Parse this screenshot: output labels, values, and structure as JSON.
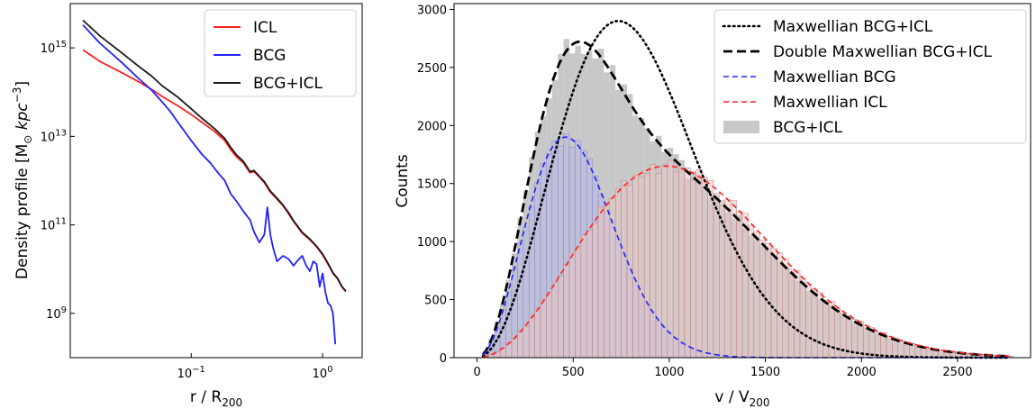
{
  "chart_data": [
    {
      "type": "line",
      "xlabel": "r / R",
      "xlabel_sub": "200",
      "ylabel": "Density profile [M",
      "ylabel_sub": "⊙",
      "ylabel_unit": " kpc",
      "ylabel_sup": "−3",
      "ylabel_close": "]",
      "xscale": "log",
      "yscale": "log",
      "xlim": [
        0.012,
        2.0
      ],
      "ylim": [
        100000000.0,
        1e+16
      ],
      "xticks": [
        {
          "value": 0.1,
          "base": "10",
          "exp": "−1"
        },
        {
          "value": 1,
          "base": "10",
          "exp": "0"
        }
      ],
      "yticks": [
        {
          "value": 1000000000.0,
          "base": "10",
          "exp": "9"
        },
        {
          "value": 100000000000.0,
          "base": "10",
          "exp": "11"
        },
        {
          "value": 10000000000000.0,
          "base": "10",
          "exp": "13"
        },
        {
          "value": 1000000000000000.0,
          "base": "10",
          "exp": "15"
        }
      ],
      "legend_position": "top-right",
      "series": [
        {
          "name": "ICL",
          "color": "#ff2020",
          "x": [
            0.015,
            0.02,
            0.03,
            0.04,
            0.05,
            0.06,
            0.08,
            0.1,
            0.12,
            0.15,
            0.18,
            0.2,
            0.22,
            0.25,
            0.28,
            0.3,
            0.33,
            0.36,
            0.4,
            0.45,
            0.5,
            0.55,
            0.6,
            0.7,
            0.8,
            0.9,
            1.0,
            1.1,
            1.2,
            1.3,
            1.4,
            1.5
          ],
          "y": [
            900000000000000.0,
            500000000000000.0,
            270000000000000.0,
            170000000000000.0,
            115000000000000.0,
            80000000000000.0,
            48000000000000.0,
            31000000000000.0,
            21000000000000.0,
            13000000000000.0,
            8000000000000.0,
            5000000000000.0,
            3500000000000.0,
            2500000000000.0,
            1500000000000.0,
            1600000000000.0,
            1200000000000.0,
            900000000000.0,
            550000000000.0,
            380000000000.0,
            270000000000.0,
            180000000000.0,
            120000000000.0,
            65000000000.0,
            46000000000.0,
            32000000000.0,
            21000000000.0,
            13000000000.0,
            8000000000.0,
            6000000000.0,
            4000000000.0,
            3100000000.0
          ]
        },
        {
          "name": "BCG",
          "color": "#2020ff",
          "x": [
            0.015,
            0.02,
            0.03,
            0.04,
            0.05,
            0.06,
            0.07,
            0.08,
            0.1,
            0.12,
            0.14,
            0.16,
            0.18,
            0.2,
            0.22,
            0.25,
            0.28,
            0.3,
            0.33,
            0.36,
            0.38,
            0.4,
            0.42,
            0.45,
            0.5,
            0.55,
            0.6,
            0.65,
            0.7,
            0.75,
            0.8,
            0.85,
            0.9,
            0.95,
            1.0,
            1.05,
            1.1,
            1.15,
            1.2,
            1.25
          ],
          "y": [
            3300000000000000.0,
            1300000000000000.0,
            450000000000000.0,
            200000000000000.0,
            110000000000000.0,
            60000000000000.0,
            35000000000000.0,
            20000000000000.0,
            8000000000000.0,
            4000000000000.0,
            2500000000000.0,
            1500000000000.0,
            1000000000000.0,
            500000000000.0,
            350000000000.0,
            200000000000.0,
            130000000000.0,
            70000000000.0,
            40000000000.0,
            60000000000.0,
            250000000000.0,
            60000000000.0,
            30000000000.0,
            15000000000.0,
            20000000000.0,
            17000000000.0,
            12000000000.0,
            16000000000.0,
            20000000000.0,
            12000000000.0,
            9000000000.0,
            15000000000.0,
            13000000000.0,
            4000000000.0,
            8000000000.0,
            3000000000.0,
            1700000000.0,
            1500000000.0,
            1000000000.0,
            200000000.0
          ]
        },
        {
          "name": "BCG+ICL",
          "color": "#1a1a1a",
          "x": [
            0.015,
            0.02,
            0.03,
            0.04,
            0.05,
            0.06,
            0.08,
            0.1,
            0.12,
            0.15,
            0.18,
            0.2,
            0.22,
            0.25,
            0.28,
            0.3,
            0.33,
            0.36,
            0.4,
            0.45,
            0.5,
            0.55,
            0.6,
            0.7,
            0.8,
            0.9,
            1.0,
            1.1,
            1.2,
            1.3,
            1.4,
            1.5
          ],
          "y": [
            4200000000000000.0,
            1900000000000000.0,
            750000000000000.0,
            380000000000000.0,
            230000000000000.0,
            140000000000000.0,
            75000000000000.0,
            42000000000000.0,
            26000000000000.0,
            15000000000000.0,
            9000000000000.0,
            5600000000000.0,
            3900000000000.0,
            2700000000000.0,
            1600000000000.0,
            1700000000000.0,
            1250000000000.0,
            950000000000.0,
            580000000000.0,
            400000000000.0,
            280000000000.0,
            190000000000.0,
            125000000000.0,
            68000000000.0,
            48000000000.0,
            33000000000.0,
            22000000000.0,
            13500000000.0,
            8300000000.0,
            6200000000.0,
            4100000000.0,
            3200000000.0
          ]
        }
      ]
    },
    {
      "type": "bar",
      "xlabel": "v / V",
      "xlabel_sub": "200",
      "ylabel": "Counts",
      "xlim": [
        -120,
        2880
      ],
      "ylim": [
        0,
        3050
      ],
      "xticks": [
        0,
        500,
        1000,
        1500,
        2000,
        2500
      ],
      "yticks": [
        0,
        500,
        1000,
        1500,
        2000,
        2500,
        3000
      ],
      "legend_position": "top-right",
      "hist_bin_width": 30,
      "hist_start": 30,
      "histograms": [
        {
          "name": "BCG+ICL",
          "color": "#c8c8c8",
          "model": "double"
        },
        {
          "name": "BCG",
          "color": "#b8b8e8",
          "edge": "#8888cc",
          "model": "bcg"
        },
        {
          "name": "ICL",
          "color": "#e8c8c8",
          "edge": "#c08080",
          "model": "icl"
        }
      ],
      "curves": [
        {
          "name": "Maxwellian BCG+ICL",
          "color": "#000000",
          "style": "dotted",
          "amp": 2900,
          "peak": 735
        },
        {
          "name": "Double Maxwellian BCG+ICL",
          "color": "#000000",
          "style": "dashed-thick",
          "model": "double"
        },
        {
          "name": "Maxwellian BCG",
          "color": "#2020ff",
          "style": "dashed",
          "amp": 1900,
          "peak": 460
        },
        {
          "name": "Maxwellian ICL",
          "color": "#ff2020",
          "style": "dashed",
          "amp": 1650,
          "peak": 985
        }
      ],
      "legend": [
        {
          "name": "Maxwellian BCG+ICL",
          "kind": "dotted",
          "color": "#000000"
        },
        {
          "name": "Double Maxwellian BCG+ICL",
          "kind": "dashed-thick",
          "color": "#000000"
        },
        {
          "name": "Maxwellian BCG",
          "kind": "dashed",
          "color": "#2020ff"
        },
        {
          "name": "Maxwellian ICL",
          "kind": "dashed",
          "color": "#ff2020"
        },
        {
          "name": "BCG+ICL",
          "kind": "patch",
          "color": "#c8c8c8"
        }
      ]
    }
  ]
}
